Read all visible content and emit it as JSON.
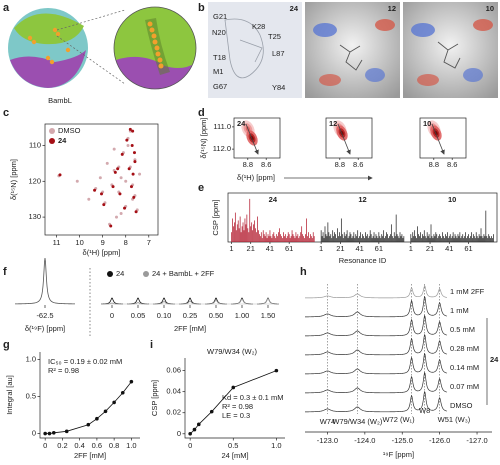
{
  "panels": {
    "a": {
      "label": "a",
      "caption": "BambL"
    },
    "b": {
      "label": "b",
      "titles": [
        "24",
        "12",
        "10"
      ],
      "residues": [
        "G21",
        "K28",
        "N20",
        "T25",
        "T18",
        "L87",
        "M1",
        "G67",
        "Y84"
      ]
    }
  },
  "chart_data": [
    {
      "type": "scatter",
      "panel": "c",
      "xlabel": "δ(¹H) [ppm]",
      "ylabel": "δ(¹⁵N) [ppm]",
      "xlim": [
        11.5,
        6.6
      ],
      "ylim": [
        135,
        104
      ],
      "xticks": [
        11,
        10,
        9,
        8,
        7
      ],
      "yticks": [
        110,
        120,
        130
      ],
      "series": [
        {
          "name": "DMSO",
          "color": "#d3a9ae",
          "x": [
            10.9,
            9.6,
            9.3,
            9.1,
            8.9,
            8.8,
            8.6,
            8.5,
            8.4,
            8.3,
            8.2,
            8.1,
            8.0,
            7.9,
            7.8,
            7.7,
            7.6,
            7.5,
            7.9,
            8.7,
            8.2,
            7.6,
            7.8,
            8.5,
            9.0,
            8.3,
            7.7,
            10.1,
            8.0,
            7.4
          ],
          "values": [
            118.5,
            125,
            122,
            119,
            126,
            115,
            121,
            117,
            130,
            123,
            119,
            112,
            127,
            108,
            116,
            121,
            124,
            128,
            110,
            132,
            129,
            114,
            106,
            111,
            123,
            116,
            125,
            120,
            120,
            118
          ]
        },
        {
          "name": "24",
          "color": "#a50f15",
          "x": [
            10.85,
            9.35,
            8.95,
            8.55,
            8.45,
            8.25,
            8.05,
            7.95,
            7.85,
            7.75,
            7.7,
            7.65,
            7.55,
            8.65,
            8.15,
            7.6,
            7.8,
            8.35,
            9.05,
            7.72,
            7.68,
            7.62
          ],
          "values": [
            118.2,
            122.5,
            126.5,
            121.5,
            117.5,
            123.5,
            127.5,
            108.5,
            116.5,
            121.5,
            106,
            124.5,
            128.5,
            132.5,
            112.5,
            114.5,
            105.5,
            116.5,
            123.5,
            110,
            118,
            112
          ]
        }
      ]
    },
    {
      "type": "contour",
      "panel": "d",
      "xlabel": "δ(¹H) [ppm]",
      "ylabel": "δ(¹⁵N) [ppm]",
      "titles": [
        "24",
        "12",
        "10"
      ],
      "xlim": [
        8.95,
        8.45
      ],
      "ylim": [
        112.4,
        110.6
      ],
      "xticks": [
        8.8,
        8.6
      ],
      "yticks": [
        {
          "value": 111,
          "label": "111.0"
        },
        {
          "value": 112,
          "label": "112.0"
        }
      ]
    },
    {
      "type": "bar",
      "panel": "e",
      "xlabel": "Resonance ID",
      "ylabel": "CSP [ppm]",
      "ylim": [
        0,
        0.25
      ],
      "xticks": [
        1,
        21,
        41,
        61
      ],
      "series": [
        {
          "name": "24",
          "color": "#b2182b",
          "values": [
            0.05,
            0.12,
            0.08,
            0.1,
            0.15,
            0.06,
            0.09,
            0.11,
            0.07,
            0.13,
            0.05,
            0.08,
            0.1,
            0.06,
            0.12,
            0.09,
            0.14,
            0.07,
            0.05,
            0.22,
            0.08,
            0.1,
            0.06,
            0.09,
            0.11,
            0.07,
            0.05,
            0.13,
            0.06,
            0.04,
            0.03,
            0.05,
            0.02,
            0.06,
            0.04,
            0.03,
            0.05,
            0.02,
            0.04,
            0.03,
            0.06,
            0.03,
            0.02,
            0.04,
            0.05,
            0.03,
            0.02,
            0.04,
            0.03,
            0.05,
            0.07,
            0.04,
            0.03,
            0.02,
            0.05,
            0.03,
            0.04,
            0.02,
            0.03,
            0.05,
            0.04,
            0.02,
            0.03,
            0.06,
            0.04,
            0.03,
            0.02,
            0.05,
            0.03,
            0.04,
            0.02,
            0.03,
            0.05,
            0.08,
            0.04,
            0.03,
            0.02,
            0.04,
            0.12,
            0.03,
            0.05,
            0.02,
            0.04,
            0.03,
            0.02,
            0.05,
            0.03
          ]
        },
        {
          "name": "12",
          "color": "#222222",
          "values": [
            0.06,
            0.03,
            0.05,
            0.02,
            0.08,
            0.04,
            0.03,
            0.1,
            0.05,
            0.03,
            0.04,
            0.02,
            0.06,
            0.03,
            0.05,
            0.04,
            0.02,
            0.07,
            0.03,
            0.05,
            0.03,
            0.12,
            0.04,
            0.02,
            0.05,
            0.03,
            0.04,
            0.06,
            0.02,
            0.03,
            0.05,
            0.04,
            0.02,
            0.03,
            0.05,
            0.02,
            0.04,
            0.03,
            0.06,
            0.02,
            0.03,
            0.05,
            0.02,
            0.04,
            0.03,
            0.02,
            0.05,
            0.03,
            0.04,
            0.02,
            0.03,
            0.06,
            0.04,
            0.02,
            0.03,
            0.05,
            0.02,
            0.04,
            0.03,
            0.02,
            0.05,
            0.03,
            0.02,
            0.04,
            0.03,
            0.06,
            0.02,
            0.03,
            0.05,
            0.04,
            0.02,
            0.03,
            0.04,
            0.09,
            0.03,
            0.02,
            0.05,
            0.03,
            0.14,
            0.04,
            0.03,
            0.02,
            0.05,
            0.03,
            0.04,
            0.02,
            0.03
          ]
        },
        {
          "name": "10",
          "color": "#222222",
          "values": [
            0.04,
            0.02,
            0.05,
            0.03,
            0.06,
            0.03,
            0.02,
            0.08,
            0.04,
            0.03,
            0.05,
            0.02,
            0.04,
            0.03,
            0.06,
            0.03,
            0.02,
            0.05,
            0.03,
            0.04,
            0.02,
            0.09,
            0.03,
            0.02,
            0.04,
            0.03,
            0.05,
            0.04,
            0.02,
            0.03,
            0.04,
            0.03,
            0.02,
            0.05,
            0.03,
            0.02,
            0.04,
            0.03,
            0.05,
            0.02,
            0.03,
            0.04,
            0.02,
            0.03,
            0.05,
            0.02,
            0.04,
            0.03,
            0.02,
            0.04,
            0.03,
            0.05,
            0.02,
            0.03,
            0.04,
            0.02,
            0.03,
            0.05,
            0.02,
            0.03,
            0.04,
            0.02,
            0.03,
            0.05,
            0.02,
            0.04,
            0.03,
            0.02,
            0.05,
            0.03,
            0.02,
            0.04,
            0.03,
            0.07,
            0.03,
            0.02,
            0.04,
            0.03,
            0.16,
            0.03,
            0.02,
            0.04,
            0.03,
            0.02,
            0.03,
            0.02,
            0.04
          ]
        }
      ]
    },
    {
      "type": "peaks",
      "panel": "f",
      "reference_tick": -62.5,
      "reference_label": "δ(¹⁹F) [ppm]",
      "xlabel": "2FF [mM]",
      "categories": [
        "0",
        "0.05",
        "0.10",
        "0.25",
        "0.50",
        "1.00",
        "1.50"
      ],
      "ylim": [
        0,
        1
      ],
      "series": [
        {
          "name": "24",
          "color": "#111111",
          "values": [
            0.12,
            0.12,
            0.12,
            0.12,
            0.12,
            0.12,
            0.12
          ]
        },
        {
          "name": "24 + BambL + 2FF",
          "color": "#9a9a9a",
          "values": [
            0.02,
            0.03,
            0.05,
            0.06,
            0.08,
            0.1,
            0.11
          ]
        }
      ]
    },
    {
      "type": "scatter",
      "panel": "g",
      "xlabel": "2FF [mM]",
      "ylabel": "Integral [au]",
      "annotations": [
        "IC₅₀ = 0.19 ± 0.02 mM",
        "R² = 0.98"
      ],
      "xlim": [
        -0.06,
        1.1
      ],
      "ylim": [
        -0.06,
        1.1
      ],
      "xticks": [
        0,
        0.2,
        0.4,
        0.6,
        0.8,
        {
          "value": 1,
          "label": "1.0"
        }
      ],
      "yticks": [
        0,
        0.5,
        {
          "value": 1,
          "label": "1.0"
        }
      ],
      "fit_line": true,
      "color": "#111111",
      "x": [
        0,
        0.05,
        0.1,
        0.25,
        0.5,
        0.6,
        0.7,
        0.8,
        0.9,
        1.0
      ],
      "values": [
        0,
        0,
        0.01,
        0.03,
        0.12,
        0.2,
        0.3,
        0.42,
        0.55,
        0.7
      ]
    },
    {
      "type": "spectra",
      "panel": "h",
      "xlabel": "¹⁹F [ppm]",
      "xlim": [
        -122.4,
        -127.4
      ],
      "xticks": [
        {
          "value": -123,
          "label": "-123.0"
        },
        {
          "value": -124,
          "label": "-124.0"
        },
        {
          "value": -125,
          "label": "-125.0"
        },
        {
          "value": -126,
          "label": "-126.0"
        },
        {
          "value": -127,
          "label": "-127.0"
        }
      ],
      "traces": [
        "1 mM 2FF",
        "1 mM",
        "0.5 mM",
        "0.28 mM",
        "0.14 mM",
        "0.07 mM",
        "DMSO"
      ],
      "group_label": "24",
      "peaks": [
        {
          "label": "W74",
          "x": -123.0
        },
        {
          "label": "W79/W34 (W₂)",
          "x": -123.8
        },
        {
          "label": "W72 (W₁)",
          "x": -125.25
        },
        {
          "label": "W8",
          "x": -125.6
        },
        {
          "label": "W51 (W₃)",
          "x": -126.0
        }
      ]
    },
    {
      "type": "scatter",
      "panel": "i",
      "title": "W79/W34 (W₂)",
      "xlabel": "24 [mM]",
      "ylabel": "CSP [ppm]",
      "annotations": [
        "Kd = 0.3 ± 0.1 mM",
        "R² = 0.98",
        "LE = 0.3"
      ],
      "xlim": [
        -0.06,
        1.1
      ],
      "ylim": [
        -0.004,
        0.072
      ],
      "xticks": [
        0,
        0.5,
        {
          "value": 1,
          "label": "1.0"
        }
      ],
      "yticks": [
        0,
        0.02,
        0.04,
        0.06
      ],
      "fit_line": true,
      "color": "#111111",
      "x": [
        0,
        0.05,
        0.1,
        0.25,
        0.5,
        1.0
      ],
      "values": [
        0,
        0.004,
        0.009,
        0.021,
        0.044,
        0.06
      ]
    }
  ]
}
